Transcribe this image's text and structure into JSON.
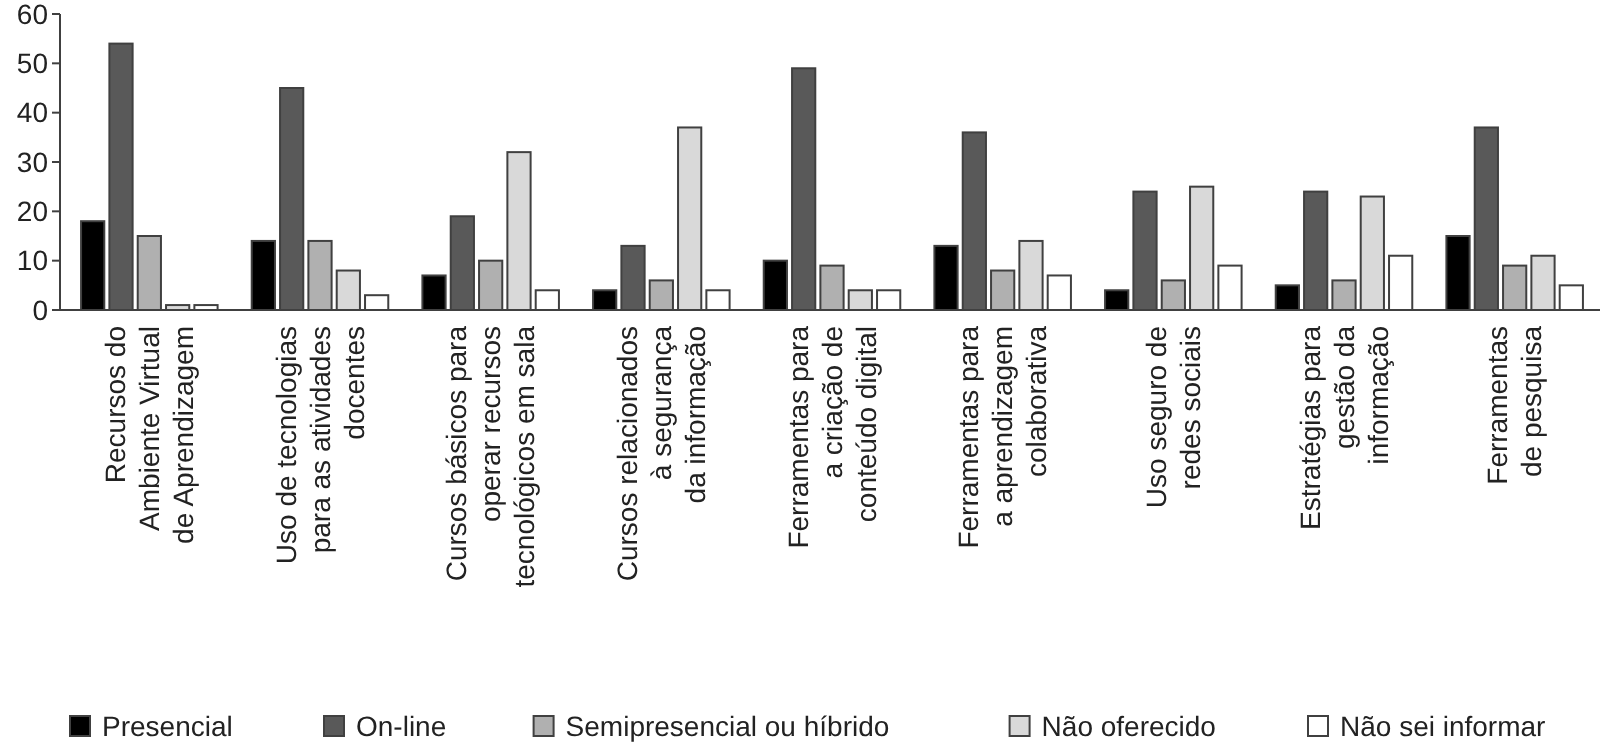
{
  "chart_data": {
    "type": "bar",
    "categories": [
      "Recursos do\nAmbiente Virtual\nde Aprendizagem",
      "Uso de tecnologias\npara as atividades\ndocentes",
      "Cursos básicos para\noperar recursos\ntecnológicos em sala",
      "Cursos relacionados\nà segurança\nda informação",
      "Ferramentas para\na criação de\nconteúdo digital",
      "Ferramentas para\na aprendizagem\ncolaborativa",
      "Uso seguro de\nredes sociais",
      "Estratégias para\ngestão da\ninformação",
      "Ferramentas\nde pesquisa"
    ],
    "series": [
      {
        "name": "Presencial",
        "color": "#000000",
        "values": [
          18,
          14,
          7,
          4,
          10,
          13,
          4,
          5,
          15
        ]
      },
      {
        "name": "On-line",
        "color": "#595959",
        "values": [
          54,
          45,
          19,
          13,
          49,
          36,
          24,
          24,
          37
        ]
      },
      {
        "name": "Semipresencial ou híbrido",
        "color": "#b0b0b0",
        "values": [
          15,
          14,
          10,
          6,
          9,
          8,
          6,
          6,
          9
        ]
      },
      {
        "name": "Não oferecido",
        "color": "#d9d9d9",
        "values": [
          1,
          8,
          32,
          37,
          4,
          14,
          25,
          23,
          11
        ]
      },
      {
        "name": "Não sei informar",
        "color": "#ffffff",
        "values": [
          1,
          3,
          4,
          4,
          4,
          7,
          9,
          11,
          5
        ]
      }
    ],
    "ylim": [
      0,
      60
    ],
    "yticks": [
      0,
      10,
      20,
      30,
      40,
      50,
      60
    ],
    "grid": false,
    "legend": "bottom"
  }
}
